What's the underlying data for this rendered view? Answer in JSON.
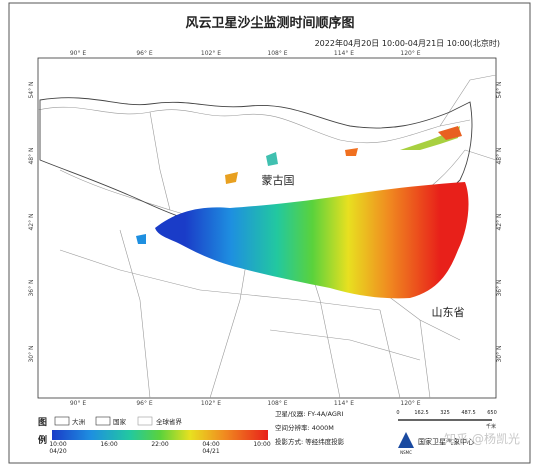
{
  "header": {
    "title": "风云卫星沙尘监测时间顺序图",
    "subtitle": "2022年04月20日 10:00-04月21日 10:00(北京时)"
  },
  "map": {
    "lon_labels": [
      "90° E",
      "96° E",
      "102° E",
      "108° E",
      "114° E",
      "120° E"
    ],
    "lat_labels": [
      "54° N",
      "48° N",
      "42° N",
      "36° N",
      "30° N"
    ],
    "place_labels": [
      "蒙古国",
      "山东省"
    ]
  },
  "legend": {
    "title_top": "图",
    "title_bottom": "例",
    "items": [
      "大洲",
      "国家",
      "全球省界"
    ]
  },
  "colorbar": {
    "ticks": [
      {
        "time": "10:00",
        "date": "04/20"
      },
      {
        "time": "16:00"
      },
      {
        "time": "22:00"
      },
      {
        "time": "04:00",
        "date": "04/21"
      },
      {
        "time": "10:00"
      }
    ]
  },
  "info": [
    "卫星/仪器: FY-4A/AGRI",
    "空间分辨率: 4000M",
    "投影方式: 等经纬度投影"
  ],
  "scale": {
    "ticks": [
      "0",
      "162.5",
      "325",
      "487.5",
      "650"
    ],
    "unit": "千米"
  },
  "logo": {
    "short": "NSMC",
    "name": "国家卫星气象中心"
  },
  "watermark": "知乎 @杨凯光"
}
